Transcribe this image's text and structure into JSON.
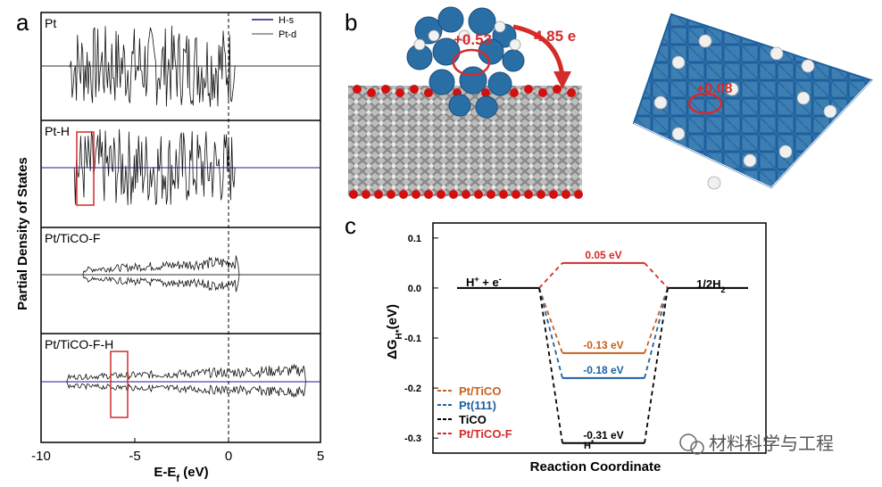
{
  "panel_labels": {
    "a": "a",
    "b": "b",
    "c": "c"
  },
  "panel_a": {
    "ylabel": "Partial Density of States",
    "xlabel_main": "E-E",
    "xlabel_sub": "f",
    "xlabel_unit": " (eV)",
    "xticks": [
      "-10",
      "-5",
      "0",
      "5"
    ],
    "legend": {
      "hs": "H-s",
      "ptd": "Pt-d"
    },
    "subpanels": [
      {
        "name": "Pt"
      },
      {
        "name": "Pt-H"
      },
      {
        "name": "Pt/TiCO-F"
      },
      {
        "name": "Pt/TiCO-F-H"
      }
    ]
  },
  "panel_b": {
    "left_charge": "+0.53",
    "transfer": "4.85 e",
    "right_charge": "+0.08"
  },
  "watermark": "材料科学与工程",
  "colors": {
    "pt_ticoco": "#c8601e",
    "pt111": "#1f5f9e",
    "tico": "#000000",
    "pt_tico_f": "#d42b2b",
    "atom_blue": "#2a6ea6",
    "oxygen": "#d40f0f"
  },
  "chart_data": {
    "type": "line",
    "title": "",
    "xlabel": "Reaction Coordinate",
    "ylabel": "ΔG",
    "ylabel_sub": "H*",
    "ylabel_unit": "(eV)",
    "ylim": [
      -0.33,
      0.13
    ],
    "yticks": [
      "0.1",
      "0.0",
      "-0.1",
      "-0.2",
      "-0.3"
    ],
    "state_labels": {
      "initial": "H",
      "initial_sup": "+",
      "initial_rest": " + e",
      "initial_sup2": "-",
      "final": "1/2H",
      "final_sub": "2",
      "intermediate": "H",
      "intermediate_sup": "*"
    },
    "series": [
      {
        "name": "Pt/TiCO",
        "label": "-0.13 eV",
        "value": -0.13,
        "color": "#c8601e"
      },
      {
        "name": "Pt(111)",
        "label": "-0.18 eV",
        "value": -0.18,
        "color": "#1f5f9e"
      },
      {
        "name": "TiCO",
        "label": "-0.31 eV",
        "value": -0.31,
        "color": "#000000"
      },
      {
        "name": "Pt/TiCO-F",
        "label": "0.05 eV",
        "value": 0.05,
        "color": "#d42b2b"
      }
    ]
  }
}
